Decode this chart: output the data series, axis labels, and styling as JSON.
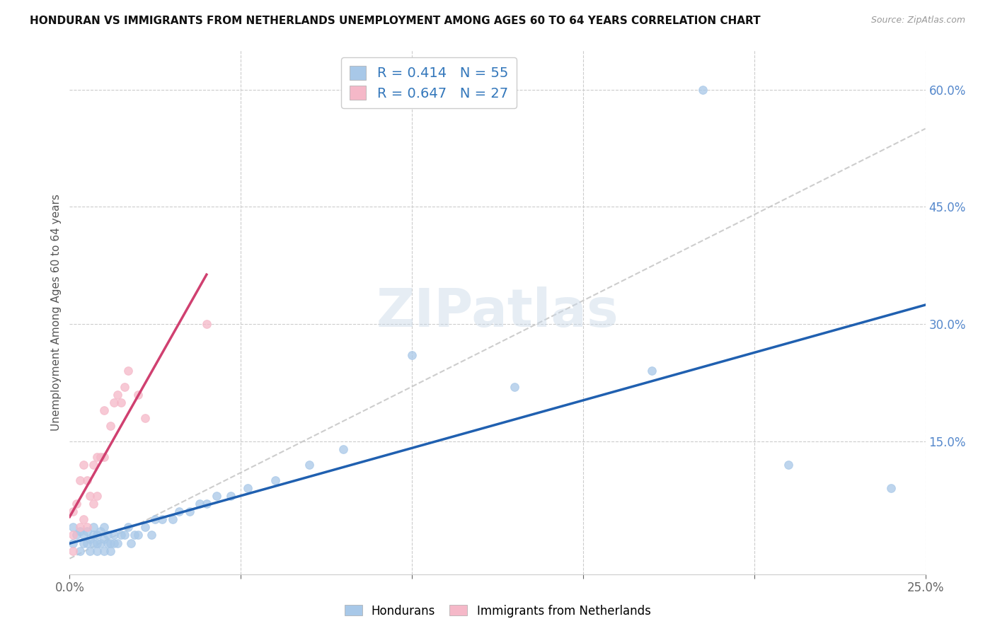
{
  "title": "HONDURAN VS IMMIGRANTS FROM NETHERLANDS UNEMPLOYMENT AMONG AGES 60 TO 64 YEARS CORRELATION CHART",
  "source": "Source: ZipAtlas.com",
  "ylabel": "Unemployment Among Ages 60 to 64 years",
  "xlim": [
    0.0,
    0.25
  ],
  "ylim": [
    -0.02,
    0.65
  ],
  "xtick_positions": [
    0.0,
    0.05,
    0.1,
    0.15,
    0.2,
    0.25
  ],
  "xticklabels": [
    "0.0%",
    "",
    "",
    "",
    "",
    "25.0%"
  ],
  "ytick_positions": [
    0.0,
    0.15,
    0.3,
    0.45,
    0.6
  ],
  "yticklabels_right": [
    "",
    "15.0%",
    "30.0%",
    "45.0%",
    "60.0%"
  ],
  "hondurans_color": "#a8c8e8",
  "netherlands_color": "#f5b8c8",
  "trendline_hondurans_color": "#2060b0",
  "trendline_netherlands_color": "#d04070",
  "trendline_dashed_color": "#c8c8c8",
  "R_hondurans": 0.414,
  "N_hondurans": 55,
  "R_netherlands": 0.647,
  "N_netherlands": 27,
  "legend_label_hondurans": "Hondurans",
  "legend_label_netherlands": "Immigrants from Netherlands",
  "watermark": "ZIPatlas",
  "hondurans_x": [
    0.001,
    0.001,
    0.002,
    0.003,
    0.003,
    0.004,
    0.004,
    0.005,
    0.005,
    0.006,
    0.006,
    0.007,
    0.007,
    0.007,
    0.008,
    0.008,
    0.008,
    0.009,
    0.009,
    0.01,
    0.01,
    0.01,
    0.011,
    0.011,
    0.012,
    0.012,
    0.013,
    0.013,
    0.014,
    0.015,
    0.016,
    0.017,
    0.018,
    0.019,
    0.02,
    0.022,
    0.024,
    0.025,
    0.027,
    0.03,
    0.032,
    0.035,
    0.038,
    0.04,
    0.043,
    0.047,
    0.052,
    0.06,
    0.07,
    0.08,
    0.1,
    0.13,
    0.17,
    0.21,
    0.24
  ],
  "hondurans_y": [
    0.02,
    0.04,
    0.03,
    0.01,
    0.035,
    0.02,
    0.03,
    0.02,
    0.035,
    0.01,
    0.025,
    0.02,
    0.03,
    0.04,
    0.01,
    0.02,
    0.03,
    0.02,
    0.035,
    0.01,
    0.025,
    0.04,
    0.02,
    0.03,
    0.01,
    0.02,
    0.02,
    0.03,
    0.02,
    0.03,
    0.03,
    0.04,
    0.02,
    0.03,
    0.03,
    0.04,
    0.03,
    0.05,
    0.05,
    0.05,
    0.06,
    0.06,
    0.07,
    0.07,
    0.08,
    0.08,
    0.09,
    0.1,
    0.12,
    0.14,
    0.26,
    0.22,
    0.24,
    0.12,
    0.09
  ],
  "netherlands_x": [
    0.001,
    0.001,
    0.001,
    0.002,
    0.003,
    0.003,
    0.004,
    0.004,
    0.005,
    0.005,
    0.006,
    0.007,
    0.007,
    0.008,
    0.008,
    0.009,
    0.01,
    0.01,
    0.012,
    0.013,
    0.014,
    0.015,
    0.016,
    0.017,
    0.02,
    0.022,
    0.04
  ],
  "netherlands_y": [
    0.01,
    0.03,
    0.06,
    0.07,
    0.04,
    0.1,
    0.05,
    0.12,
    0.04,
    0.1,
    0.08,
    0.07,
    0.12,
    0.08,
    0.13,
    0.13,
    0.13,
    0.19,
    0.17,
    0.2,
    0.21,
    0.2,
    0.22,
    0.24,
    0.21,
    0.18,
    0.3
  ],
  "hondurans_outlier_x": [
    0.185
  ],
  "hondurans_outlier_y": [
    0.6
  ]
}
